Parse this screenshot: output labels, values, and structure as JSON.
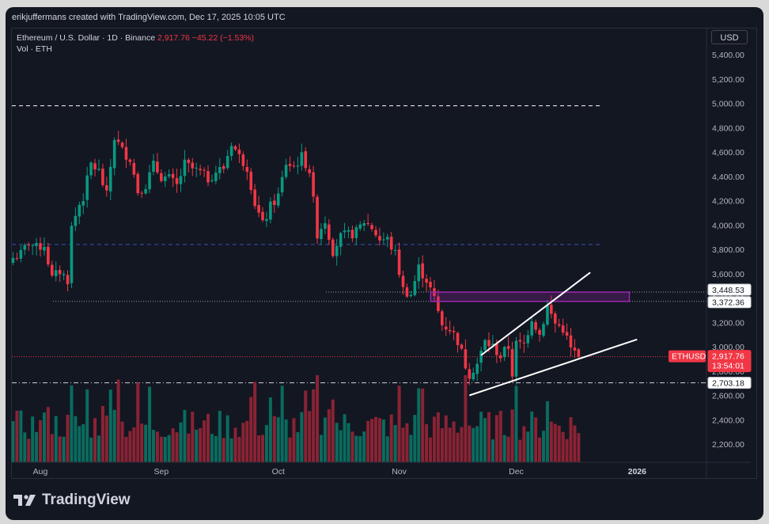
{
  "attribution": "erikjuffermans created with TradingView.com, Dec 17, 2025 10:05 UTC",
  "header": {
    "symbol": "Ethereum / U.S. Dollar · 1D · Binance",
    "price": "2,917.76",
    "change": "−45.22 (−1.53%)",
    "volume_label": "Vol · ETH"
  },
  "currency_button": "USD",
  "price_labels": {
    "ticker": "ETHUSD",
    "last": "2,917.76",
    "countdown": "13:54:01",
    "zone_top": "3,448.53",
    "zone_bottom": "3,372.36",
    "support": "2,703.18"
  },
  "brand": "TradingView",
  "colors": {
    "up": "#089981",
    "down": "#f23645",
    "zone": "#9c27b0",
    "background": "#131722",
    "grid_text": "#b2b5be"
  },
  "chart_data": {
    "type": "candlestick",
    "symbol": "ETHUSD",
    "interval": "1D",
    "ylim": [
      2080,
      5520
    ],
    "yticks": [
      5400,
      5200,
      5000,
      4800,
      4600,
      4400,
      4200,
      4000,
      3800,
      3600,
      3400,
      3200,
      3000,
      2800,
      2600,
      2400,
      2200
    ],
    "ytick_labels": [
      "5,400.00",
      "5,200.00",
      "5,000.00",
      "4,800.00",
      "4,600.00",
      "4,400.00",
      "4,200.00",
      "4,000.00",
      "3,800.00",
      "3,600.00",
      "3,400.00",
      "3,200.00",
      "3,000.00",
      "2,800.00",
      "2,600.00",
      "2,400.00",
      "2,200.00"
    ],
    "xtick_labels": [
      "Aug",
      "Sep",
      "Oct",
      "Nov",
      "Dec",
      "2026"
    ],
    "xtick_day_index": [
      7,
      38,
      68,
      99,
      129,
      160
    ],
    "first_candle_date": "Jul 25, 2025",
    "close_anchors": [
      [
        0,
        3730
      ],
      [
        2,
        3760
      ],
      [
        4,
        3860
      ],
      [
        6,
        3810
      ],
      [
        8,
        3840
      ],
      [
        10,
        3560
      ],
      [
        12,
        3620
      ],
      [
        14,
        3550
      ],
      [
        15,
        3980
      ],
      [
        17,
        4170
      ],
      [
        18,
        4230
      ],
      [
        20,
        4500
      ],
      [
        22,
        4440
      ],
      [
        24,
        4240
      ],
      [
        26,
        4720
      ],
      [
        28,
        4610
      ],
      [
        30,
        4550
      ],
      [
        32,
        4280
      ],
      [
        34,
        4330
      ],
      [
        36,
        4490
      ],
      [
        38,
        4400
      ],
      [
        40,
        4380
      ],
      [
        42,
        4320
      ],
      [
        44,
        4500
      ],
      [
        46,
        4460
      ],
      [
        48,
        4430
      ],
      [
        50,
        4380
      ],
      [
        52,
        4440
      ],
      [
        54,
        4470
      ],
      [
        56,
        4680
      ],
      [
        58,
        4560
      ],
      [
        60,
        4480
      ],
      [
        62,
        4180
      ],
      [
        64,
        4000
      ],
      [
        66,
        4150
      ],
      [
        68,
        4240
      ],
      [
        70,
        4510
      ],
      [
        72,
        4480
      ],
      [
        74,
        4560
      ],
      [
        76,
        4450
      ],
      [
        78,
        3930
      ],
      [
        80,
        4040
      ],
      [
        82,
        3790
      ],
      [
        84,
        3900
      ],
      [
        86,
        3920
      ],
      [
        88,
        3940
      ],
      [
        90,
        4030
      ],
      [
        92,
        3980
      ],
      [
        94,
        3880
      ],
      [
        96,
        3880
      ],
      [
        98,
        3760
      ],
      [
        100,
        3470
      ],
      [
        102,
        3430
      ],
      [
        104,
        3650
      ],
      [
        106,
        3550
      ],
      [
        108,
        3390
      ],
      [
        110,
        3180
      ],
      [
        112,
        3150
      ],
      [
        114,
        3050
      ],
      [
        116,
        2850
      ],
      [
        117,
        2780
      ],
      [
        119,
        2860
      ],
      [
        121,
        3040
      ],
      [
        123,
        3000
      ],
      [
        125,
        2920
      ],
      [
        127,
        3000
      ],
      [
        128,
        2780
      ],
      [
        129,
        3020
      ],
      [
        131,
        3020
      ],
      [
        133,
        3240
      ],
      [
        135,
        3100
      ],
      [
        137,
        3330
      ],
      [
        139,
        3190
      ],
      [
        141,
        3150
      ],
      [
        143,
        2980
      ],
      [
        145,
        2918
      ]
    ],
    "volume_ylim": [
      0,
      2400000
    ],
    "levels": {
      "dashed_white": 4980,
      "dashed_blue": 3840,
      "dotted_grey": 3372.36,
      "dotted_red_last": 2917.76,
      "dashdot_support": 2703.18
    },
    "zone": {
      "from": 3372.36,
      "to": 3448.53,
      "start_day": 102,
      "end_day": 158
    },
    "trendlines": [
      {
        "from": [
          117,
          2600
        ],
        "to": [
          160,
          3060
        ]
      },
      {
        "from": [
          120,
          2930
        ],
        "to": [
          148,
          3610
        ]
      }
    ]
  }
}
